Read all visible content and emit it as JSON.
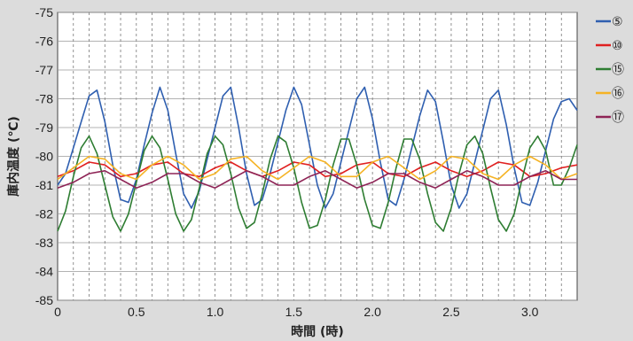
{
  "chart_data": {
    "type": "line",
    "title": "",
    "xlabel": "時間 (時)",
    "ylabel": "庫内温度 (℃)",
    "xlim": [
      0,
      3.3
    ],
    "ylim": [
      -85,
      -75
    ],
    "x_ticks": [
      0,
      0.5,
      1.0,
      1.5,
      2.0,
      2.5,
      3.0
    ],
    "x_tick_labels": [
      "0",
      "0.5",
      "1.0",
      "1.5",
      "2.0",
      "2.5",
      "3.0"
    ],
    "y_ticks": [
      -75,
      -76,
      -77,
      -78,
      -79,
      -80,
      -81,
      -82,
      -83,
      -84,
      -85
    ],
    "y_tick_labels": [
      "-75",
      "-76",
      "-77",
      "-78",
      "-79",
      "-80",
      "-81",
      "-82",
      "-83",
      "-84",
      "-85"
    ],
    "grid": "horizontal solid, vertical dashed",
    "legend_position": "right",
    "series": [
      {
        "name": "⑤",
        "color": "#2f5fb0",
        "x": [
          0,
          0.05,
          0.1,
          0.15,
          0.2,
          0.25,
          0.3,
          0.35,
          0.4,
          0.45,
          0.5,
          0.55,
          0.6,
          0.65,
          0.7,
          0.75,
          0.8,
          0.85,
          0.9,
          0.95,
          1.0,
          1.05,
          1.1,
          1.15,
          1.2,
          1.25,
          1.3,
          1.35,
          1.4,
          1.45,
          1.5,
          1.55,
          1.6,
          1.65,
          1.7,
          1.75,
          1.8,
          1.85,
          1.9,
          1.95,
          2.0,
          2.05,
          2.1,
          2.15,
          2.2,
          2.25,
          2.3,
          2.35,
          2.4,
          2.45,
          2.5,
          2.55,
          2.6,
          2.65,
          2.7,
          2.75,
          2.8,
          2.85,
          2.9,
          2.95,
          3.0,
          3.05,
          3.1,
          3.15,
          3.2,
          3.25,
          3.3
        ],
        "y": [
          -81.0,
          -80.6,
          -79.7,
          -78.8,
          -77.9,
          -77.7,
          -78.8,
          -80.3,
          -81.5,
          -81.6,
          -80.8,
          -79.6,
          -78.5,
          -77.6,
          -78.4,
          -79.9,
          -81.3,
          -81.8,
          -81.2,
          -80.1,
          -79.0,
          -77.9,
          -77.6,
          -79.0,
          -80.6,
          -81.7,
          -81.5,
          -80.6,
          -79.5,
          -78.4,
          -77.6,
          -78.2,
          -79.6,
          -81.0,
          -81.8,
          -81.3,
          -80.2,
          -79.1,
          -78.0,
          -77.6,
          -78.7,
          -80.2,
          -81.5,
          -81.7,
          -80.8,
          -79.7,
          -78.6,
          -77.7,
          -78.1,
          -79.5,
          -81.0,
          -81.8,
          -81.3,
          -80.2,
          -79.1,
          -78.0,
          -77.7,
          -78.9,
          -80.4,
          -81.6,
          -81.7,
          -80.9,
          -79.8,
          -78.7,
          -78.1,
          -78.0,
          -78.4
        ]
      },
      {
        "name": "⑩",
        "color": "#e02020",
        "x": [
          0,
          0.1,
          0.2,
          0.3,
          0.4,
          0.5,
          0.6,
          0.7,
          0.8,
          0.9,
          1.0,
          1.1,
          1.2,
          1.3,
          1.4,
          1.5,
          1.6,
          1.7,
          1.8,
          1.9,
          2.0,
          2.1,
          2.2,
          2.3,
          2.4,
          2.5,
          2.6,
          2.7,
          2.8,
          2.9,
          3.0,
          3.1,
          3.2,
          3.3
        ],
        "y": [
          -80.7,
          -80.5,
          -80.2,
          -80.3,
          -80.7,
          -80.6,
          -80.3,
          -80.2,
          -80.6,
          -80.7,
          -80.4,
          -80.2,
          -80.5,
          -80.7,
          -80.5,
          -80.2,
          -80.3,
          -80.7,
          -80.6,
          -80.3,
          -80.2,
          -80.6,
          -80.7,
          -80.4,
          -80.2,
          -80.5,
          -80.7,
          -80.5,
          -80.2,
          -80.3,
          -80.7,
          -80.6,
          -80.4,
          -80.3
        ]
      },
      {
        "name": "⑮",
        "color": "#2e7d32",
        "x": [
          0,
          0.05,
          0.1,
          0.15,
          0.2,
          0.25,
          0.3,
          0.35,
          0.4,
          0.45,
          0.5,
          0.55,
          0.6,
          0.65,
          0.7,
          0.75,
          0.8,
          0.85,
          0.9,
          0.95,
          1.0,
          1.05,
          1.1,
          1.15,
          1.2,
          1.25,
          1.3,
          1.35,
          1.4,
          1.45,
          1.5,
          1.55,
          1.6,
          1.65,
          1.7,
          1.75,
          1.8,
          1.85,
          1.9,
          1.95,
          2.0,
          2.05,
          2.1,
          2.15,
          2.2,
          2.25,
          2.3,
          2.35,
          2.4,
          2.45,
          2.5,
          2.55,
          2.6,
          2.65,
          2.7,
          2.75,
          2.8,
          2.85,
          2.9,
          2.95,
          3.0,
          3.05,
          3.1,
          3.15,
          3.2,
          3.25,
          3.3
        ],
        "y": [
          -82.6,
          -81.9,
          -80.7,
          -79.7,
          -79.3,
          -79.9,
          -81.0,
          -82.1,
          -82.6,
          -82.0,
          -80.9,
          -79.8,
          -79.3,
          -79.7,
          -80.8,
          -82.0,
          -82.6,
          -82.2,
          -81.1,
          -79.9,
          -79.3,
          -79.6,
          -80.6,
          -81.8,
          -82.5,
          -82.3,
          -81.3,
          -80.1,
          -79.3,
          -79.5,
          -80.4,
          -81.6,
          -82.5,
          -82.4,
          -81.5,
          -80.3,
          -79.4,
          -79.4,
          -80.3,
          -81.5,
          -82.4,
          -82.5,
          -81.6,
          -80.4,
          -79.4,
          -79.4,
          -80.1,
          -81.3,
          -82.3,
          -82.6,
          -81.8,
          -80.6,
          -79.6,
          -79.3,
          -79.9,
          -81.1,
          -82.2,
          -82.6,
          -82.0,
          -80.8,
          -79.7,
          -79.3,
          -79.8,
          -81.0,
          -81.0,
          -80.4,
          -79.6
        ]
      },
      {
        "name": "⑯",
        "color": "#f5b324",
        "x": [
          0,
          0.1,
          0.2,
          0.3,
          0.4,
          0.5,
          0.6,
          0.7,
          0.8,
          0.9,
          1.0,
          1.1,
          1.2,
          1.3,
          1.4,
          1.5,
          1.6,
          1.7,
          1.8,
          1.9,
          2.0,
          2.1,
          2.2,
          2.3,
          2.4,
          2.5,
          2.6,
          2.7,
          2.8,
          2.9,
          3.0,
          3.1,
          3.2,
          3.3
        ],
        "y": [
          -80.8,
          -80.4,
          -80.0,
          -80.1,
          -80.6,
          -80.8,
          -80.3,
          -80.0,
          -80.3,
          -80.8,
          -80.6,
          -80.1,
          -80.0,
          -80.5,
          -80.8,
          -80.4,
          -80.0,
          -80.2,
          -80.7,
          -80.7,
          -80.2,
          -80.0,
          -80.4,
          -80.8,
          -80.5,
          -80.0,
          -80.1,
          -80.6,
          -80.8,
          -80.3,
          -80.0,
          -80.3,
          -80.8,
          -80.6
        ]
      },
      {
        "name": "⑰",
        "color": "#8e2456",
        "x": [
          0,
          0.1,
          0.2,
          0.3,
          0.4,
          0.5,
          0.6,
          0.7,
          0.8,
          0.9,
          1.0,
          1.1,
          1.2,
          1.3,
          1.4,
          1.5,
          1.6,
          1.7,
          1.8,
          1.9,
          2.0,
          2.1,
          2.2,
          2.3,
          2.4,
          2.5,
          2.6,
          2.7,
          2.8,
          2.9,
          3.0,
          3.1,
          3.2,
          3.3
        ],
        "y": [
          -81.1,
          -80.9,
          -80.6,
          -80.5,
          -80.8,
          -81.1,
          -80.9,
          -80.6,
          -80.6,
          -80.9,
          -81.1,
          -80.8,
          -80.5,
          -80.7,
          -81.0,
          -81.0,
          -80.7,
          -80.5,
          -80.8,
          -81.1,
          -80.9,
          -80.6,
          -80.6,
          -80.9,
          -81.1,
          -80.8,
          -80.5,
          -80.7,
          -81.0,
          -81.0,
          -80.7,
          -80.5,
          -80.8,
          -80.8
        ]
      }
    ]
  }
}
